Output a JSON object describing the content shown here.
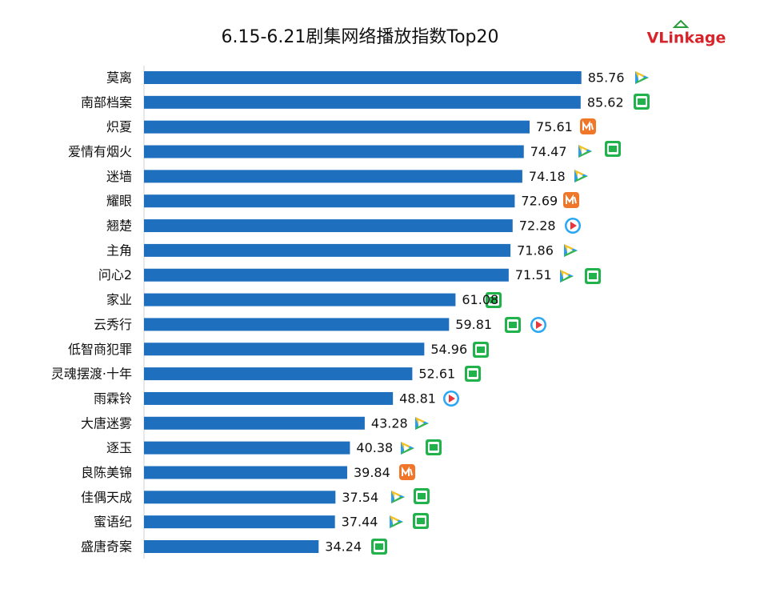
{
  "chart_data": {
    "type": "barh",
    "title": "6.15-6.21剧集网络播放指数Top20",
    "logo": "VLinkage",
    "categories": [
      "莫离",
      "南部档案",
      "炽夏",
      "爱情有烟火",
      "迷墙",
      "耀眼",
      "翘楚",
      "主角",
      "问心2",
      "家业",
      "云秀行",
      "低智商犯罪",
      "灵魂摆渡·十年",
      "雨霖铃",
      "大唐迷雾",
      "逐玉",
      "良陈美锦",
      "佳偶天成",
      "蜜语纪",
      "盛唐奇案"
    ],
    "values": [
      85.76,
      85.62,
      75.61,
      74.47,
      74.18,
      72.69,
      72.28,
      71.86,
      71.51,
      61.08,
      59.81,
      54.96,
      52.61,
      48.81,
      43.28,
      40.38,
      39.84,
      37.54,
      37.44,
      34.24
    ],
    "color": "#1f6fbf",
    "xlim": [
      0,
      120
    ]
  }
}
